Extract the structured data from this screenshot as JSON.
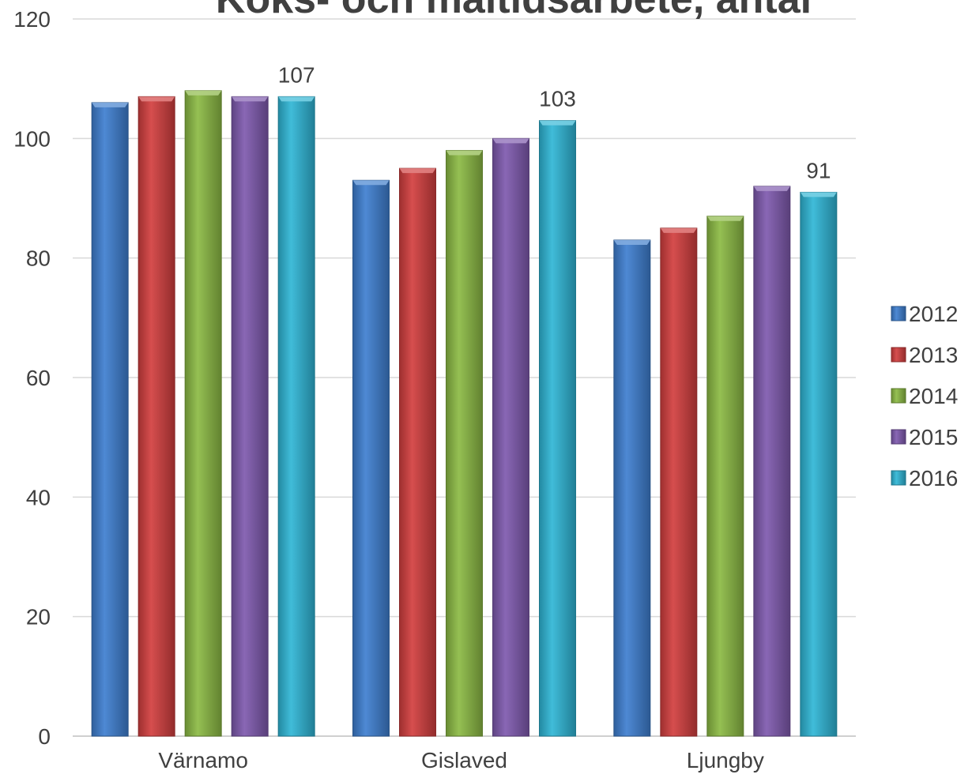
{
  "chart_data": {
    "type": "bar",
    "title": "Koks- och måltidsarbete, antal",
    "xlabel": "",
    "ylabel": "",
    "ylim": [
      0,
      120
    ],
    "yticks": [
      0,
      20,
      40,
      60,
      80,
      100,
      120
    ],
    "categories": [
      "Värnamo",
      "Gislaved",
      "Ljungby"
    ],
    "series": [
      {
        "name": "2012",
        "color": "#3f7fd0",
        "values": [
          106,
          93,
          83
        ]
      },
      {
        "name": "2013",
        "color": "#d23f3f",
        "values": [
          107,
          95,
          85
        ]
      },
      {
        "name": "2014",
        "color": "#8cba44",
        "values": [
          108,
          98,
          87
        ]
      },
      {
        "name": "2015",
        "color": "#7f5aaf",
        "values": [
          107,
          100,
          92
        ]
      },
      {
        "name": "2016",
        "color": "#2fb6d6",
        "values": [
          107,
          103,
          91
        ]
      }
    ],
    "data_labels": [
      {
        "series": "2016",
        "category": "Värnamo",
        "text": "107"
      },
      {
        "series": "2016",
        "category": "Gislaved",
        "text": "103"
      },
      {
        "series": "2016",
        "category": "Ljungby",
        "text": "91"
      }
    ],
    "grid": true,
    "legend_position": "right"
  }
}
